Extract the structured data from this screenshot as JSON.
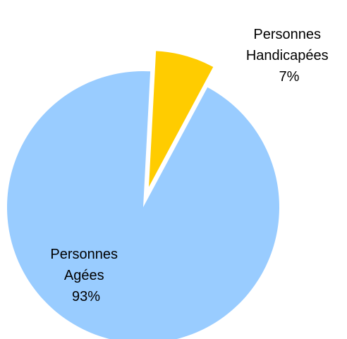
{
  "chart_data": {
    "type": "pie",
    "title": "",
    "slices": [
      {
        "label_lines": [
          "Personnes",
          "Handicapées"
        ],
        "value": 7,
        "value_label": "7%",
        "color": "#FFCC00",
        "exploded": true
      },
      {
        "label_lines": [
          "Personnes",
          "Agées"
        ],
        "value": 93,
        "value_label": "93%",
        "color": "#99CCFF",
        "exploded": false
      }
    ]
  }
}
